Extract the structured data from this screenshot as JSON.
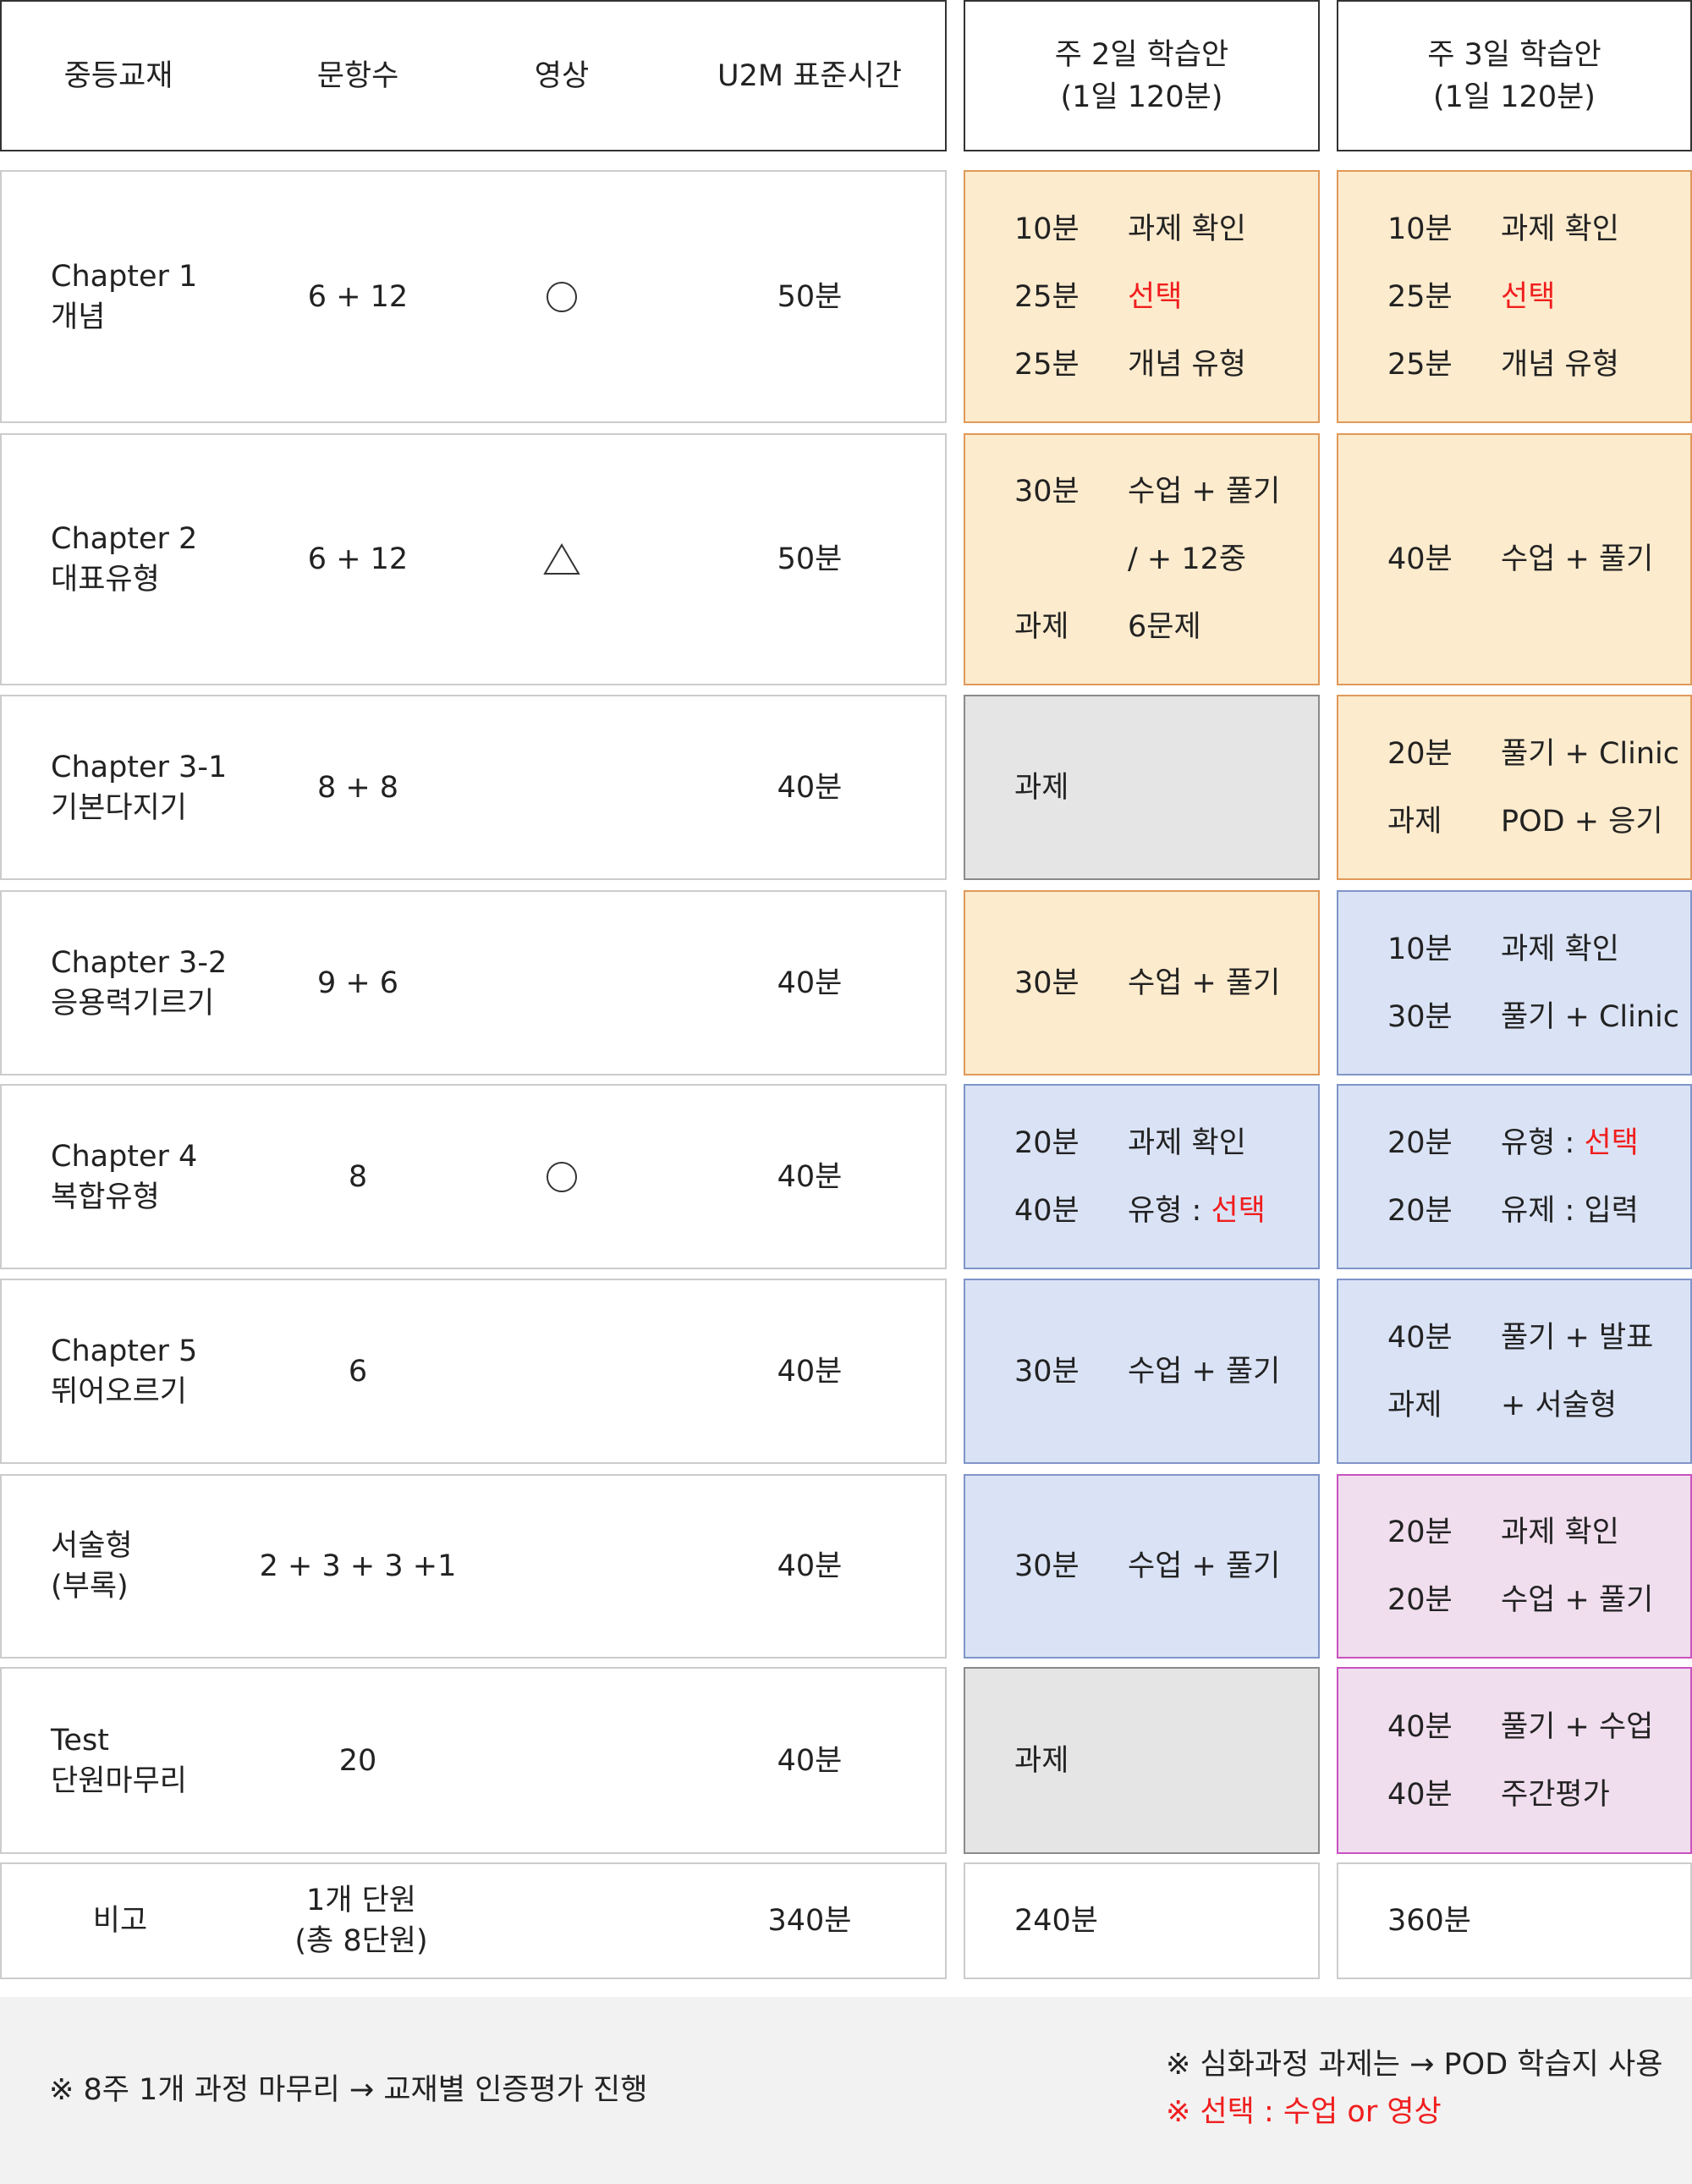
{
  "header": {
    "textbook": "중등교재",
    "items": "문항수",
    "video": "영상",
    "standard_time": "U2M 표준시간",
    "plan2": [
      "주 2일 학습안",
      "(1일 120분)"
    ],
    "plan3": [
      "주 3일 학습안",
      "(1일 120분)"
    ]
  },
  "rows": [
    {
      "name": [
        "Chapter 1",
        "개념"
      ],
      "items": "6 + 12",
      "video": "circle-icon",
      "time": "50분",
      "theme2": "orange",
      "plan2": [
        [
          "10분",
          "과제 확인"
        ],
        [
          "25분",
          "선택"
        ],
        [
          "25분",
          "개념 유형"
        ]
      ],
      "theme3": "orange",
      "plan3": [
        [
          "10분",
          "과제 확인"
        ],
        [
          "25분",
          "선택"
        ],
        [
          "25분",
          "개념 유형"
        ]
      ]
    },
    {
      "name": [
        "Chapter 2",
        "대표유형"
      ],
      "items": "6 + 12",
      "video": "triangle-icon",
      "time": "50분",
      "theme2": "orange",
      "plan2": [
        [
          "30분",
          "수업 + 풀기"
        ],
        [
          "",
          "/ + 12중"
        ],
        [
          "과제",
          "6문제"
        ]
      ],
      "theme3": "orange",
      "plan3": [
        [
          "40분",
          "수업 + 풀기"
        ]
      ]
    },
    {
      "name": [
        "Chapter 3-1",
        "기본다지기"
      ],
      "items": "8 + 8",
      "video": "",
      "time": "40분",
      "theme2": "gray",
      "plan2": [
        [
          "과제",
          ""
        ]
      ],
      "theme3": "orange",
      "plan3": [
        [
          "20분",
          "풀기 + Clinic"
        ],
        [
          "과제",
          "POD + 응기"
        ]
      ]
    },
    {
      "name": [
        "Chapter 3-2",
        "응용력기르기"
      ],
      "items": "9 + 6",
      "video": "",
      "time": "40분",
      "theme2": "orange",
      "plan2": [
        [
          "30분",
          "수업 + 풀기"
        ]
      ],
      "theme3": "blue",
      "plan3": [
        [
          "10분",
          "과제 확인"
        ],
        [
          "30분",
          "풀기 + Clinic"
        ]
      ]
    },
    {
      "name": [
        "Chapter 4",
        "복합유형"
      ],
      "items": "8",
      "video": "circle-icon",
      "time": "40분",
      "theme2": "blue",
      "plan2": [
        [
          "20분",
          "과제 확인"
        ],
        [
          "40분",
          "유형 : ",
          "선택"
        ]
      ],
      "theme3": "blue",
      "plan3": [
        [
          "20분",
          "유형 : ",
          "선택"
        ],
        [
          "20분",
          "유제 : 입력"
        ]
      ]
    },
    {
      "name": [
        "Chapter 5",
        "뛰어오르기"
      ],
      "items": "6",
      "video": "",
      "time": "40분",
      "theme2": "blue",
      "plan2": [
        [
          "30분",
          "수업 + 풀기"
        ]
      ],
      "theme3": "blue",
      "plan3": [
        [
          "40분",
          "풀기 + 발표"
        ],
        [
          "과제",
          "+ 서술형"
        ]
      ]
    },
    {
      "name": [
        "서술형",
        "(부록)"
      ],
      "items": "2 + 3 + 3 +1",
      "video": "",
      "time": "40분",
      "theme2": "blue",
      "plan2": [
        [
          "30분",
          "수업 + 풀기"
        ]
      ],
      "theme3": "pink",
      "plan3": [
        [
          "20분",
          "과제 확인"
        ],
        [
          "20분",
          "수업 + 풀기"
        ]
      ]
    },
    {
      "name": [
        "Test",
        "단원마무리"
      ],
      "items": "20",
      "video": "",
      "time": "40분",
      "theme2": "gray",
      "plan2": [
        [
          "과제",
          ""
        ]
      ],
      "theme3": "pink",
      "plan3": [
        [
          "40분",
          "풀기 + 수업"
        ],
        [
          "40분",
          "주간평가"
        ]
      ]
    }
  ],
  "summary": {
    "label": "비고",
    "items": [
      "1개 단원",
      "(총 8단원)"
    ],
    "time": "340분",
    "plan2": "240분",
    "plan3": "360분"
  },
  "footer": {
    "left": "※ 8주 1개 과정 마무리 → 교재별 인증평가 진행",
    "right1": "※ 심화과정 과제는 → POD 학습지 사용",
    "right2": "※ 선택 : 수업 or 영상"
  },
  "colors": {
    "orange": "#fdebcd",
    "blue": "#dae3f5",
    "gray": "#e5e5e5",
    "pink": "#f0deee",
    "red": "#f01e1e"
  }
}
